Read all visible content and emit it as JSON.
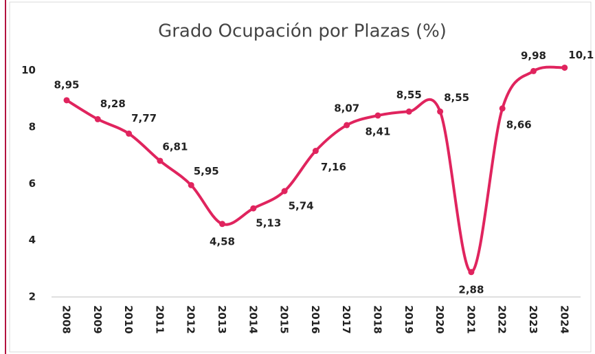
{
  "chart_data": {
    "type": "line",
    "title": "Grado Ocupación por Plazas (%)",
    "categories": [
      "2008",
      "2009",
      "2010",
      "2011",
      "2012",
      "2013",
      "2014",
      "2015",
      "2016",
      "2017",
      "2018",
      "2019",
      "2020",
      "2021",
      "2022",
      "2023",
      "2024"
    ],
    "series": [
      {
        "name": "Grado Ocupación por Plazas (%)",
        "color": "#e0245e",
        "values": [
          8.95,
          8.28,
          7.77,
          6.81,
          5.95,
          4.58,
          5.13,
          5.74,
          7.16,
          8.07,
          8.41,
          8.55,
          8.55,
          2.88,
          8.66,
          9.98,
          10.1
        ],
        "value_labels": [
          "8,95",
          "8,28",
          "7,77",
          "6,81",
          "5,95",
          "4,58",
          "5,13",
          "5,74",
          "7,16",
          "8,07",
          "8,41",
          "8,55",
          "8,55",
          "2,88",
          "8,66",
          "9,98",
          "10,1"
        ]
      }
    ],
    "ylim": [
      2,
      10.5
    ],
    "yticks": [
      2,
      4,
      6,
      8,
      10
    ],
    "grid": false,
    "smooth": true
  }
}
